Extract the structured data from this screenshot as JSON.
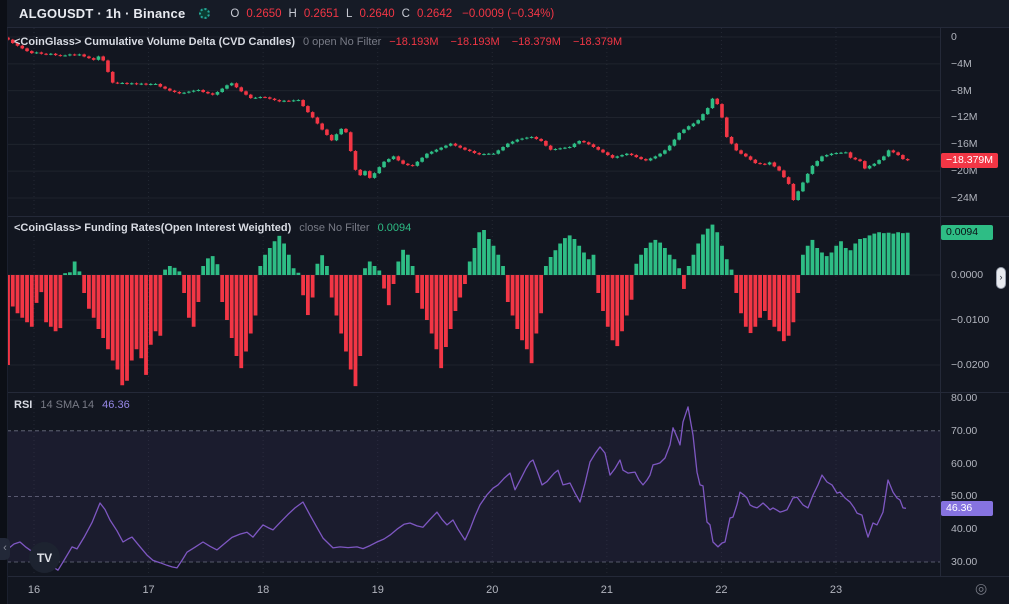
{
  "header": {
    "symbol_title": "ALGOUSDT · 1h · Binance",
    "ohlc": [
      {
        "k": "O",
        "v": "0.2650"
      },
      {
        "k": "H",
        "v": "0.2651"
      },
      {
        "k": "L",
        "v": "0.2640"
      },
      {
        "k": "C",
        "v": "0.2642"
      }
    ],
    "change": "−0.0009 (−0.34%)"
  },
  "legends": {
    "cvd": {
      "title": "<CoinGlass> Cumulative Volume Delta (CVD Candles)",
      "params": "0 open No Filter",
      "values": [
        "−18.193M",
        "−18.193M",
        "−18.379M",
        "−18.379M"
      ]
    },
    "funding": {
      "title": "<CoinGlass> Funding Rates(Open Interest Weighted)",
      "params": "close No Filter",
      "value": "0.0094"
    },
    "rsi": {
      "title": "RSI",
      "params": "14 SMA 14",
      "value": "46.36"
    }
  },
  "badges": {
    "cvd": "−18.379M",
    "funding": "0.0094",
    "rsi": "46.36"
  },
  "time_axis": {
    "labels": [
      "16",
      "17",
      "18",
      "19",
      "20",
      "21",
      "22",
      "23"
    ]
  },
  "misc": {
    "collapse_arrow": "‹",
    "tv_logo": "TV",
    "axis_handle": "›",
    "goto_icon": "◎"
  },
  "colors": {
    "green": "#2ebd85",
    "red": "#f23645",
    "purple": "#7e57c2",
    "badge_purple": "#8673e0"
  },
  "chart_data": [
    {
      "type": "candlestick",
      "name": "Cumulative Volume Delta (CVD Candles)",
      "unit": "millions",
      "first_open": -0.1,
      "last": -18.379,
      "last_ohlc": {
        "open": -18.193,
        "high": -18.193,
        "low": -18.379,
        "close": -18.379
      },
      "ticks": [
        {
          "v": 0,
          "label": "0"
        },
        {
          "v": -4,
          "label": "−4M"
        },
        {
          "v": -8,
          "label": "−8M"
        },
        {
          "v": -12,
          "label": "−12M"
        },
        {
          "v": -16,
          "label": "−16M"
        },
        {
          "v": -20,
          "label": "−20M"
        },
        {
          "v": -24,
          "label": "−24M"
        }
      ],
      "closes": [
        -0.4,
        -0.9,
        -1.3,
        -1.7,
        -2.1,
        -2.4,
        -2.3,
        -2.5,
        -2.6,
        -2.5,
        -2.7,
        -2.8,
        -2.75,
        -2.6,
        -2.7,
        -2.6,
        -2.9,
        -3.15,
        -3.4,
        -2.9,
        -3.5,
        -5.2,
        -6.8,
        -6.9,
        -6.85,
        -7.0,
        -6.9,
        -7.05,
        -6.95,
        -7.1,
        -7.0,
        -7.0,
        -7.4,
        -7.7,
        -8.0,
        -8.2,
        -8.4,
        -8.3,
        -8.15,
        -8.0,
        -7.9,
        -8.2,
        -8.4,
        -8.6,
        -8.2,
        -7.7,
        -7.2,
        -6.9,
        -7.5,
        -8.1,
        -8.6,
        -9.1,
        -9.05,
        -8.95,
        -9.0,
        -9.2,
        -9.4,
        -9.6,
        -9.5,
        -9.55,
        -9.45,
        -9.4,
        -10.3,
        -11.2,
        -12.0,
        -12.9,
        -13.8,
        -14.6,
        -15.4,
        -14.5,
        -13.7,
        -14.2,
        -17.0,
        -19.8,
        -20.6,
        -20.0,
        -21.0,
        -20.3,
        -19.4,
        -18.6,
        -18.2,
        -17.8,
        -18.4,
        -18.9,
        -19.1,
        -19.2,
        -18.6,
        -18.0,
        -17.4,
        -17.1,
        -16.8,
        -16.5,
        -16.2,
        -15.9,
        -16.2,
        -16.5,
        -16.8,
        -17.0,
        -17.3,
        -17.5,
        -17.45,
        -17.4,
        -17.4,
        -16.9,
        -16.4,
        -15.9,
        -15.6,
        -15.3,
        -15.15,
        -15.0,
        -14.9,
        -15.2,
        -15.5,
        -16.2,
        -16.8,
        -16.7,
        -16.6,
        -16.5,
        -16.4,
        -15.9,
        -15.5,
        -15.7,
        -16.0,
        -16.4,
        -16.8,
        -17.2,
        -17.6,
        -18.0,
        -17.8,
        -17.6,
        -17.4,
        -17.6,
        -17.9,
        -18.2,
        -18.4,
        -18.1,
        -17.8,
        -17.4,
        -16.9,
        -16.2,
        -15.3,
        -14.3,
        -13.8,
        -13.3,
        -12.9,
        -12.4,
        -11.5,
        -10.6,
        -9.2,
        -10.0,
        -12.0,
        -14.9,
        -15.9,
        -16.9,
        -17.4,
        -17.8,
        -18.3,
        -18.8,
        -18.9,
        -19.0,
        -18.7,
        -19.3,
        -19.9,
        -20.9,
        -21.9,
        -24.3,
        -23.0,
        -21.7,
        -20.4,
        -19.2,
        -18.5,
        -17.8,
        -17.6,
        -17.4,
        -17.3,
        -17.25,
        -17.2,
        -18.0,
        -18.25,
        -18.5,
        -19.6,
        -19.2,
        -18.9,
        -18.35,
        -17.8,
        -16.9,
        -17.2,
        -17.6,
        -18.193,
        -18.379
      ]
    },
    {
      "type": "bar",
      "name": "Funding Rates(Open Interest Weighted)",
      "last": 0.0094,
      "ticks": [
        {
          "v": 0,
          "label": "0.0000"
        },
        {
          "v": -0.01,
          "label": "−0.0100"
        },
        {
          "v": -0.02,
          "label": "−0.0200"
        }
      ],
      "values": [
        -0.02,
        -0.007,
        -0.0085,
        -0.0095,
        -0.0105,
        -0.0115,
        -0.0062,
        -0.0038,
        -0.0105,
        -0.0115,
        -0.0125,
        -0.0118,
        0.0004,
        0.0006,
        0.003,
        0.0008,
        -0.004,
        -0.0075,
        -0.0095,
        -0.012,
        -0.014,
        -0.0165,
        -0.019,
        -0.021,
        -0.0245,
        -0.0235,
        -0.019,
        -0.0165,
        -0.0185,
        -0.0222,
        -0.0155,
        -0.0125,
        -0.0135,
        0.0012,
        0.002,
        0.0016,
        0.0008,
        -0.004,
        -0.0095,
        -0.0115,
        -0.006,
        0.002,
        0.0037,
        0.0042,
        0.0024,
        -0.006,
        -0.01,
        -0.014,
        -0.018,
        -0.0207,
        -0.017,
        -0.013,
        -0.009,
        0.002,
        0.0045,
        0.006,
        0.0075,
        0.0087,
        0.007,
        0.0045,
        0.0015,
        0.0005,
        -0.0045,
        -0.0089,
        -0.005,
        0.0025,
        0.0044,
        0.002,
        -0.005,
        -0.009,
        -0.013,
        -0.017,
        -0.021,
        -0.0247,
        -0.018,
        0.0015,
        0.003,
        0.002,
        0.001,
        -0.003,
        -0.0067,
        -0.002,
        0.003,
        0.0056,
        0.0045,
        0.002,
        -0.004,
        -0.0075,
        -0.01,
        -0.013,
        -0.0165,
        -0.0207,
        -0.016,
        -0.012,
        -0.008,
        -0.005,
        -0.002,
        0.003,
        0.006,
        0.0095,
        0.01,
        0.008,
        0.0065,
        0.0045,
        0.002,
        -0.006,
        -0.009,
        -0.012,
        -0.0145,
        -0.0165,
        -0.0196,
        -0.013,
        -0.0085,
        0.002,
        0.004,
        0.0055,
        0.007,
        0.0082,
        0.0088,
        0.008,
        0.0065,
        0.005,
        0.0035,
        0.0045,
        -0.004,
        -0.008,
        -0.0115,
        -0.0145,
        -0.0158,
        -0.0125,
        -0.009,
        -0.0055,
        0.0025,
        0.0045,
        0.006,
        0.0072,
        0.0078,
        0.0072,
        0.006,
        0.0045,
        0.0035,
        0.0015,
        -0.0031,
        0.002,
        0.0045,
        0.007,
        0.009,
        0.0103,
        0.0112,
        0.0095,
        0.0065,
        0.0035,
        0.0012,
        -0.004,
        -0.0085,
        -0.0115,
        -0.0129,
        -0.0115,
        -0.0095,
        -0.008,
        -0.01,
        -0.0115,
        -0.0125,
        -0.0147,
        -0.0135,
        -0.0105,
        -0.004,
        0.0045,
        0.0065,
        0.0078,
        0.006,
        0.005,
        0.0042,
        0.005,
        0.0065,
        0.0075,
        0.006,
        0.0055,
        0.007,
        0.008,
        0.0082,
        0.0088,
        0.0092,
        0.0095,
        0.0093,
        0.0094,
        0.0092,
        0.0095,
        0.0093,
        0.0094
      ]
    },
    {
      "type": "line",
      "name": "RSI 14",
      "last": 46.36,
      "levels": [
        70,
        50,
        30
      ],
      "band": [
        30,
        70
      ],
      "ticks": [
        {
          "v": 80,
          "label": "80.00"
        },
        {
          "v": 70,
          "label": "70.00"
        },
        {
          "v": 60,
          "label": "60.00"
        },
        {
          "v": 50,
          "label": "50.00"
        },
        {
          "v": 40,
          "label": "40.00"
        },
        {
          "v": 30,
          "label": "30.00"
        }
      ],
      "points": [
        [
          8,
          34.0
        ],
        [
          14,
          35.5
        ],
        [
          20,
          36.1
        ],
        [
          26,
          34.5
        ],
        [
          33,
          33.0
        ],
        [
          40,
          31.5
        ],
        [
          47,
          29.5
        ],
        [
          53,
          28.5
        ],
        [
          58,
          27.5
        ],
        [
          64,
          30.5
        ],
        [
          72,
          34.6
        ],
        [
          77,
          34.0
        ],
        [
          84,
          37.5
        ],
        [
          92,
          42.0
        ],
        [
          100,
          48.0
        ],
        [
          105,
          46.0
        ],
        [
          110,
          42.8
        ],
        [
          117,
          39.5
        ],
        [
          123,
          36.1
        ],
        [
          128,
          37.0
        ],
        [
          132,
          37.6
        ],
        [
          139,
          35.0
        ],
        [
          147,
          32.1
        ],
        [
          153,
          30.5
        ],
        [
          160,
          29.8
        ],
        [
          167,
          29.0
        ],
        [
          172,
          28.5
        ],
        [
          177,
          28.2
        ],
        [
          182,
          30.5
        ],
        [
          187,
          33.0
        ],
        [
          195,
          34.5
        ],
        [
          203,
          36.1
        ],
        [
          210,
          34.8
        ],
        [
          217,
          33.7
        ],
        [
          224,
          35.5
        ],
        [
          232,
          37.5
        ],
        [
          240,
          38.5
        ],
        [
          247,
          39.1
        ],
        [
          253,
          37.6
        ],
        [
          258,
          39.5
        ],
        [
          263,
          41.3
        ],
        [
          268,
          40.5
        ],
        [
          273,
          39.8
        ],
        [
          280,
          42.0
        ],
        [
          288,
          44.5
        ],
        [
          295,
          46.5
        ],
        [
          303,
          48.3
        ],
        [
          310,
          44.3
        ],
        [
          317,
          40.5
        ],
        [
          323,
          37.3
        ],
        [
          328,
          35.8
        ],
        [
          333,
          34.3
        ],
        [
          340,
          34.6
        ],
        [
          348,
          34.4
        ],
        [
          357,
          34.6
        ],
        [
          363,
          34.1
        ],
        [
          370,
          35.0
        ],
        [
          377,
          36.1
        ],
        [
          384,
          37.0
        ],
        [
          390,
          38.2
        ],
        [
          397,
          40.0
        ],
        [
          404,
          41.5
        ],
        [
          410,
          41.9
        ],
        [
          417,
          41.0
        ],
        [
          423,
          40.6
        ],
        [
          430,
          43.0
        ],
        [
          437,
          45.2
        ],
        [
          442,
          43.0
        ],
        [
          447,
          41.3
        ],
        [
          453,
          42.8
        ],
        [
          458,
          40.0
        ],
        [
          465,
          36.7
        ],
        [
          470,
          40.0
        ],
        [
          475,
          44.0
        ],
        [
          480,
          47.4
        ],
        [
          487,
          50.5
        ],
        [
          493,
          52.5
        ],
        [
          498,
          53.5
        ],
        [
          504,
          55.5
        ],
        [
          510,
          57.1
        ],
        [
          515,
          52.0
        ],
        [
          521,
          55.5
        ],
        [
          526,
          58.5
        ],
        [
          530,
          60.5
        ],
        [
          533,
          61.1
        ],
        [
          538,
          57.0
        ],
        [
          542,
          53.5
        ],
        [
          547,
          54.5
        ],
        [
          550,
          55.6
        ],
        [
          554,
          57.0
        ],
        [
          558,
          58.0
        ],
        [
          563,
          53.5
        ],
        [
          567,
          53.8
        ],
        [
          570,
          54.1
        ],
        [
          575,
          51.0
        ],
        [
          580,
          48.3
        ],
        [
          585,
          54.0
        ],
        [
          590,
          60.5
        ],
        [
          595,
          63.0
        ],
        [
          600,
          65.1
        ],
        [
          605,
          63.2
        ],
        [
          610,
          56.5
        ],
        [
          615,
          58.5
        ],
        [
          620,
          61.1
        ],
        [
          623,
          58.0
        ],
        [
          628,
          57.1
        ],
        [
          632,
          57.3
        ],
        [
          635,
          57.4
        ],
        [
          639,
          55.0
        ],
        [
          643,
          53.5
        ],
        [
          647,
          55.0
        ],
        [
          650,
          56.5
        ],
        [
          653,
          59.6
        ],
        [
          657,
          59.9
        ],
        [
          660,
          60.2
        ],
        [
          665,
          61.7
        ],
        [
          670,
          65.7
        ],
        [
          673,
          70.9
        ],
        [
          677,
          68.1
        ],
        [
          680,
          65.7
        ],
        [
          683,
          72.7
        ],
        [
          688,
          77.3
        ],
        [
          693,
          68.7
        ],
        [
          697,
          57.4
        ],
        [
          700,
          53.5
        ],
        [
          703,
          53.2
        ],
        [
          707,
          42.2
        ],
        [
          710,
          41.3
        ],
        [
          713,
          36.1
        ],
        [
          718,
          34.6
        ],
        [
          722,
          35.8
        ],
        [
          725,
          36.1
        ],
        [
          730,
          43.4
        ],
        [
          733,
          43.7
        ],
        [
          737,
          47.5
        ],
        [
          740,
          51.3
        ],
        [
          744,
          50.4
        ],
        [
          747,
          49.5
        ],
        [
          750,
          47.4
        ],
        [
          753,
          46.9
        ],
        [
          757,
          46.5
        ],
        [
          760,
          47.2
        ],
        [
          763,
          48.0
        ],
        [
          767,
          46.9
        ],
        [
          770,
          45.9
        ],
        [
          773,
          46.5
        ],
        [
          777,
          45.8
        ],
        [
          780,
          45.2
        ],
        [
          783,
          45.5
        ],
        [
          787,
          45.9
        ],
        [
          790,
          47.7
        ],
        [
          793,
          49.5
        ],
        [
          797,
          49.8
        ],
        [
          800,
          48.6
        ],
        [
          803,
          47.4
        ],
        [
          808,
          46.5
        ],
        [
          813,
          50.4
        ],
        [
          818,
          53.5
        ],
        [
          822,
          56.5
        ],
        [
          827,
          54.4
        ],
        [
          832,
          53.5
        ],
        [
          837,
          51.0
        ],
        [
          840,
          51.3
        ],
        [
          845,
          49.5
        ],
        [
          850,
          48.3
        ],
        [
          854,
          46.6
        ],
        [
          857,
          44.9
        ],
        [
          862,
          44.3
        ],
        [
          865,
          40.6
        ],
        [
          868,
          37.6
        ],
        [
          873,
          41.9
        ],
        [
          877,
          41.3
        ],
        [
          883,
          45.2
        ],
        [
          888,
          55.0
        ],
        [
          893,
          51.3
        ],
        [
          897,
          49.5
        ],
        [
          900,
          48.9
        ],
        [
          903,
          46.5
        ],
        [
          906,
          46.36
        ]
      ]
    }
  ]
}
